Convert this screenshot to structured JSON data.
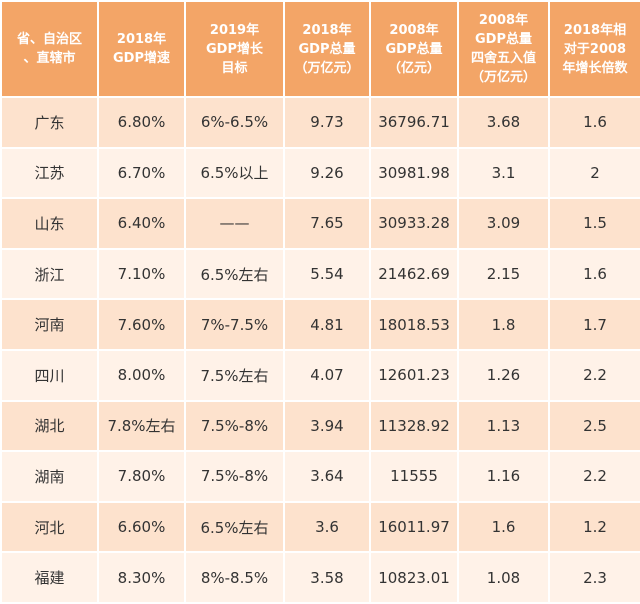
{
  "table": {
    "header": [
      [
        "省、自治区",
        "、直辖市"
      ],
      [
        "2018年",
        "GDP增速"
      ],
      [
        "2019年",
        "GDP增长",
        "目标"
      ],
      [
        "2018年",
        "GDP总量",
        "（万亿元）"
      ],
      [
        "2008年",
        "GDP总量",
        "（亿元）"
      ],
      [
        "2008年",
        "GDP总量",
        "四舍五入值",
        "（万亿元）"
      ],
      [
        "2018年相",
        "对于2008",
        "年增长倍数"
      ]
    ],
    "rows": [
      [
        "广东",
        "6.80%",
        "6%-6.5%",
        "9.73",
        "36796.71",
        "3.68",
        "1.6"
      ],
      [
        "江苏",
        "6.70%",
        "6.5%以上",
        "9.26",
        "30981.98",
        "3.1",
        "2"
      ],
      [
        "山东",
        "6.40%",
        "——",
        "7.65",
        "30933.28",
        "3.09",
        "1.5"
      ],
      [
        "浙江",
        "7.10%",
        "6.5%左右",
        "5.54",
        "21462.69",
        "2.15",
        "1.6"
      ],
      [
        "河南",
        "7.60%",
        "7%-7.5%",
        "4.81",
        "18018.53",
        "1.8",
        "1.7"
      ],
      [
        "四川",
        "8.00%",
        "7.5%左右",
        "4.07",
        "12601.23",
        "1.26",
        "2.2"
      ],
      [
        "湖北",
        "7.8%左右",
        "7.5%-8%",
        "3.94",
        "11328.92",
        "1.13",
        "2.5"
      ],
      [
        "湖南",
        "7.80%",
        "7.5%-8%",
        "3.64",
        "11555",
        "1.16",
        "2.2"
      ],
      [
        "河北",
        "6.60%",
        "6.5%左右",
        "3.6",
        "16011.97",
        "1.6",
        "1.2"
      ],
      [
        "福建",
        "8.30%",
        "8%-8.5%",
        "3.58",
        "10823.01",
        "1.08",
        "2.3"
      ]
    ]
  }
}
